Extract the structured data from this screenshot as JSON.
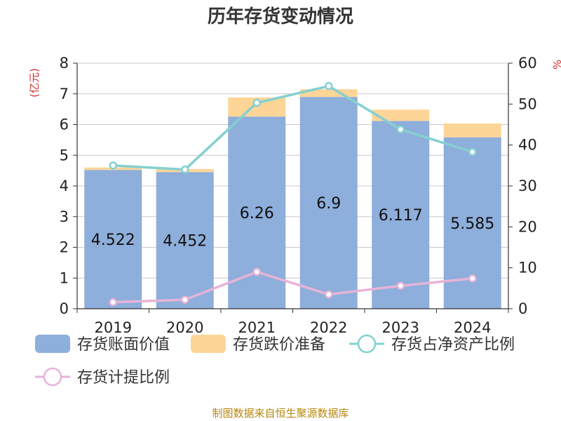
{
  "chart_data": {
    "type": "bar",
    "title": "历年存货变动情况",
    "categories": [
      "2019",
      "2020",
      "2021",
      "2022",
      "2023",
      "2024"
    ],
    "y_left": {
      "unit": "(亿元)",
      "min": 0,
      "max": 8,
      "ticks": [
        0,
        1,
        2,
        3,
        4,
        5,
        6,
        7,
        8
      ]
    },
    "y_right": {
      "unit": "%",
      "min": 0,
      "max": 60,
      "ticks": [
        0,
        10,
        20,
        30,
        40,
        50,
        60
      ]
    },
    "stacked_bars": [
      {
        "name": "存货账面价值",
        "color": "#8eaedb",
        "values": [
          4.522,
          4.452,
          6.26,
          6.9,
          6.117,
          5.585
        ],
        "labels": [
          "4.522",
          "4.452",
          "6.26",
          "6.9",
          "6.117",
          "5.585"
        ]
      },
      {
        "name": "存货跌价准备",
        "color": "#fdd597",
        "values": [
          0.08,
          0.1,
          0.62,
          0.25,
          0.37,
          0.45
        ]
      }
    ],
    "lines": [
      {
        "name": "存货占净资产比例",
        "color": "#85d0d0",
        "axis": "right",
        "values": [
          35.0,
          34.0,
          50.3,
          54.4,
          43.8,
          38.3
        ]
      },
      {
        "name": "存货计提比例",
        "color": "#e7b3d8",
        "axis": "right",
        "values": [
          1.6,
          2.2,
          9.0,
          3.5,
          5.6,
          7.4
        ]
      }
    ],
    "grid": true,
    "legend_position": "bottom"
  },
  "source_note": "制图数据来自恒生聚源数据库"
}
